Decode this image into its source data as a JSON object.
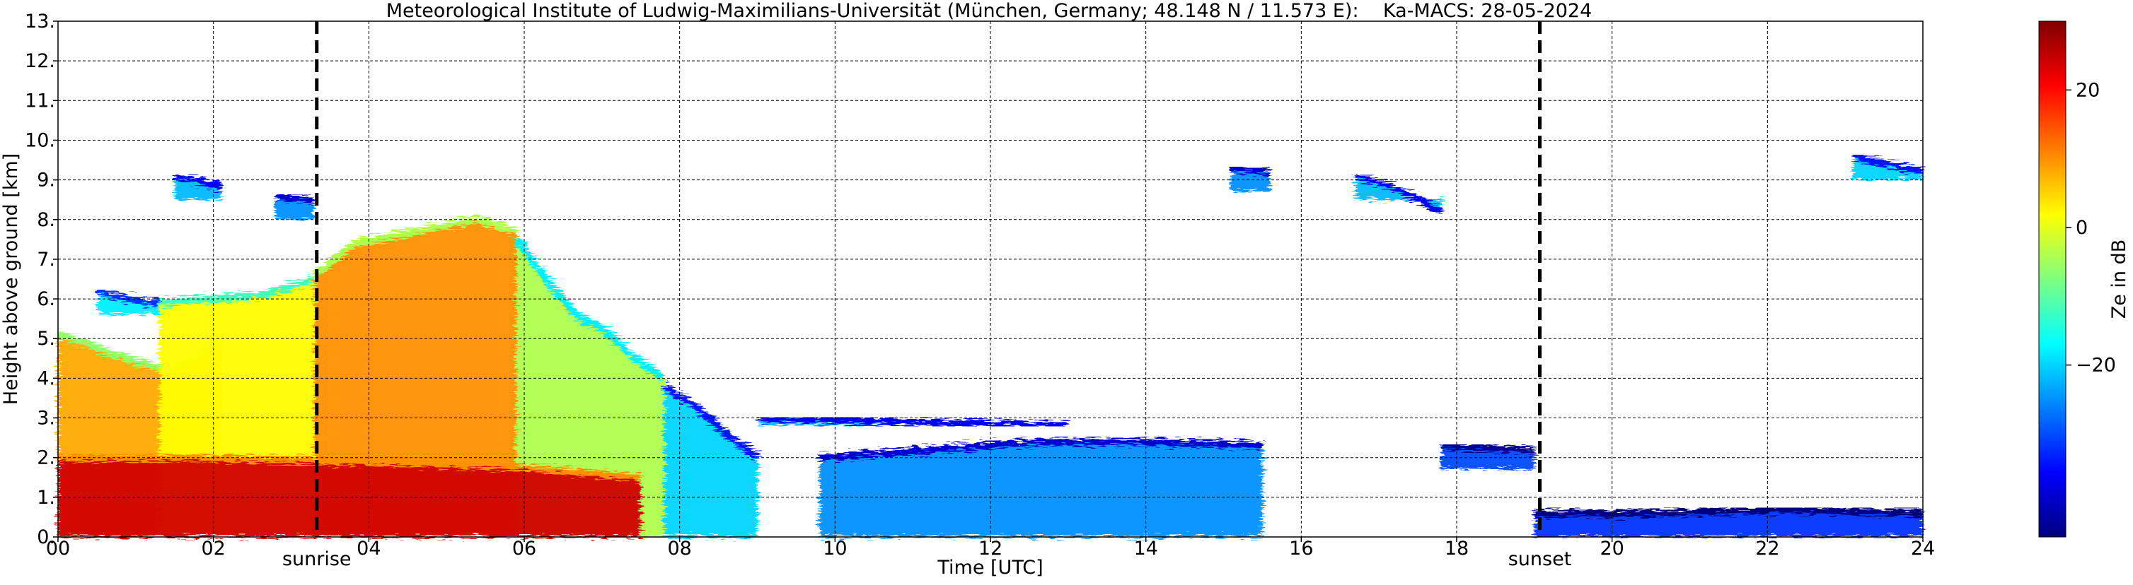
{
  "chart_data": {
    "type": "heatmap",
    "title": "Meteorological Institute of Ludwig-Maximilians-Universität (München, Germany; 48.148 N / 11.573 E):    Ka-MACS: 28-05-2024",
    "xlabel": "Time [UTC]",
    "ylabel": "Height above ground [km]",
    "xlim": [
      0,
      24
    ],
    "ylim": [
      0,
      13
    ],
    "x_ticks": [
      {
        "value": 0,
        "label": "00"
      },
      {
        "value": 2,
        "label": "02"
      },
      {
        "value": 4,
        "label": "04"
      },
      {
        "value": 6,
        "label": "06"
      },
      {
        "value": 8,
        "label": "08"
      },
      {
        "value": 10,
        "label": "10"
      },
      {
        "value": 12,
        "label": "12"
      },
      {
        "value": 14,
        "label": "14"
      },
      {
        "value": 16,
        "label": "16"
      },
      {
        "value": 18,
        "label": "18"
      },
      {
        "value": 20,
        "label": "20"
      },
      {
        "value": 22,
        "label": "22"
      },
      {
        "value": 24,
        "label": "24"
      }
    ],
    "y_ticks": [
      {
        "value": 0,
        "label": "0."
      },
      {
        "value": 1,
        "label": "1."
      },
      {
        "value": 2,
        "label": "2."
      },
      {
        "value": 3,
        "label": "3."
      },
      {
        "value": 4,
        "label": "4."
      },
      {
        "value": 5,
        "label": "5."
      },
      {
        "value": 6,
        "label": "6."
      },
      {
        "value": 7,
        "label": "7."
      },
      {
        "value": 8,
        "label": "8."
      },
      {
        "value": 9,
        "label": "9."
      },
      {
        "value": 10,
        "label": "10."
      },
      {
        "value": 11,
        "label": "11."
      },
      {
        "value": 12,
        "label": "12."
      },
      {
        "value": 13,
        "label": "13."
      }
    ],
    "grid": true,
    "events": [
      {
        "label": "sunrise",
        "time": 3.33
      },
      {
        "label": "sunset",
        "time": 19.07
      }
    ],
    "colorbar": {
      "label": "Ze in dB",
      "range": [
        -45,
        30
      ],
      "ticks": [
        {
          "value": 20,
          "label": "20"
        },
        {
          "value": 0,
          "label": "0"
        },
        {
          "value": -20,
          "label": "−20"
        }
      ],
      "colormap": [
        "#00007f",
        "#0000ff",
        "#007fff",
        "#00ffff",
        "#7fff7f",
        "#ffff00",
        "#ff7f00",
        "#ff0000",
        "#7f0000"
      ]
    },
    "echo_regions": [
      {
        "x": [
          0,
          2.1
        ],
        "y_top": [
          5.1,
          4.9,
          4.6,
          4.4,
          4.2,
          4.5,
          5.0
        ],
        "ze": 8
      },
      {
        "x": [
          0.5,
          1.3
        ],
        "y_top": [
          6.2,
          6.0,
          5.9
        ],
        "ze": -18
      },
      {
        "x": [
          1.3,
          3.3
        ],
        "y_top": [
          5.9,
          6.0,
          6.1,
          6.5
        ],
        "ze": 2
      },
      {
        "x": [
          3.3,
          5.9
        ],
        "y_top": [
          6.6,
          7.4,
          7.6,
          7.8,
          8.0,
          7.7
        ],
        "ze": 10
      },
      {
        "x": [
          5.9,
          7.8
        ],
        "y_top": [
          7.5,
          6.5,
          5.6,
          5.2,
          4.5,
          4.0
        ],
        "ze": -4
      },
      {
        "x": [
          7.8,
          9.0
        ],
        "y_top": [
          3.8,
          3.3,
          2.6,
          2.0
        ],
        "ze": -20
      },
      {
        "x": [
          0,
          7.5
        ],
        "y_top": [
          2.0,
          2.0,
          1.9,
          1.8,
          1.5
        ],
        "ze": 24
      },
      {
        "x": [
          9.0,
          13.0
        ],
        "y_top": [
          3.0,
          2.9,
          2.8
        ],
        "ze": -22
      },
      {
        "x": [
          9.8,
          15.5
        ],
        "y_top": [
          2.0,
          2.2,
          2.4,
          2.4,
          2.3
        ],
        "ze": -25
      },
      {
        "x": [
          1.5,
          2.1
        ],
        "y_top": [
          9.1,
          9.0,
          8.8
        ],
        "ze": -22
      },
      {
        "x": [
          2.8,
          3.3
        ],
        "y_top": [
          8.6,
          8.5
        ],
        "ze": -25
      },
      {
        "x": [
          15.1,
          15.6
        ],
        "y_top": [
          9.3,
          9.2
        ],
        "ze": -25
      },
      {
        "x": [
          16.7,
          17.8
        ],
        "y_top": [
          9.1,
          8.9,
          8.6,
          8.2
        ],
        "ze": -22
      },
      {
        "x": [
          17.8,
          19.0
        ],
        "y_top": [
          2.3,
          2.2
        ],
        "ze": -30
      },
      {
        "x": [
          23.1,
          24.0
        ],
        "y_top": [
          9.6,
          9.4,
          9.2
        ],
        "ze": -20
      },
      {
        "x": [
          19.0,
          24.0
        ],
        "y_top": [
          0.6,
          0.6,
          0.7,
          0.6
        ],
        "ze": -32
      }
    ]
  }
}
